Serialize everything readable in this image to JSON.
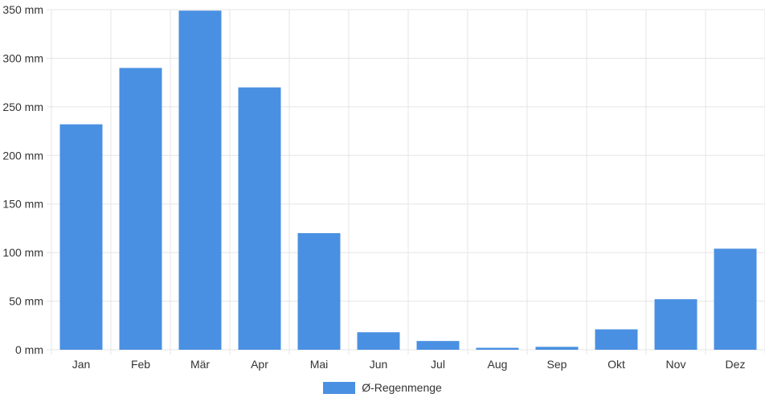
{
  "chart_data": {
    "type": "bar",
    "categories": [
      "Jan",
      "Feb",
      "Mär",
      "Apr",
      "Mai",
      "Jun",
      "Jul",
      "Aug",
      "Sep",
      "Okt",
      "Nov",
      "Dez"
    ],
    "series": [
      {
        "name": "Ø-Regenmenge",
        "values": [
          232,
          290,
          349,
          270,
          120,
          18,
          9,
          2,
          3,
          21,
          52,
          104
        ]
      }
    ],
    "yticks": [
      "0 mm",
      "50 mm",
      "100 mm",
      "150 mm",
      "200 mm",
      "250 mm",
      "300 mm",
      "350 mm"
    ],
    "ylim": [
      0,
      350
    ],
    "grid": true,
    "legend_position": "bottom",
    "bar_color": "#4a90e2",
    "grid_color": "#e5e5e5"
  }
}
